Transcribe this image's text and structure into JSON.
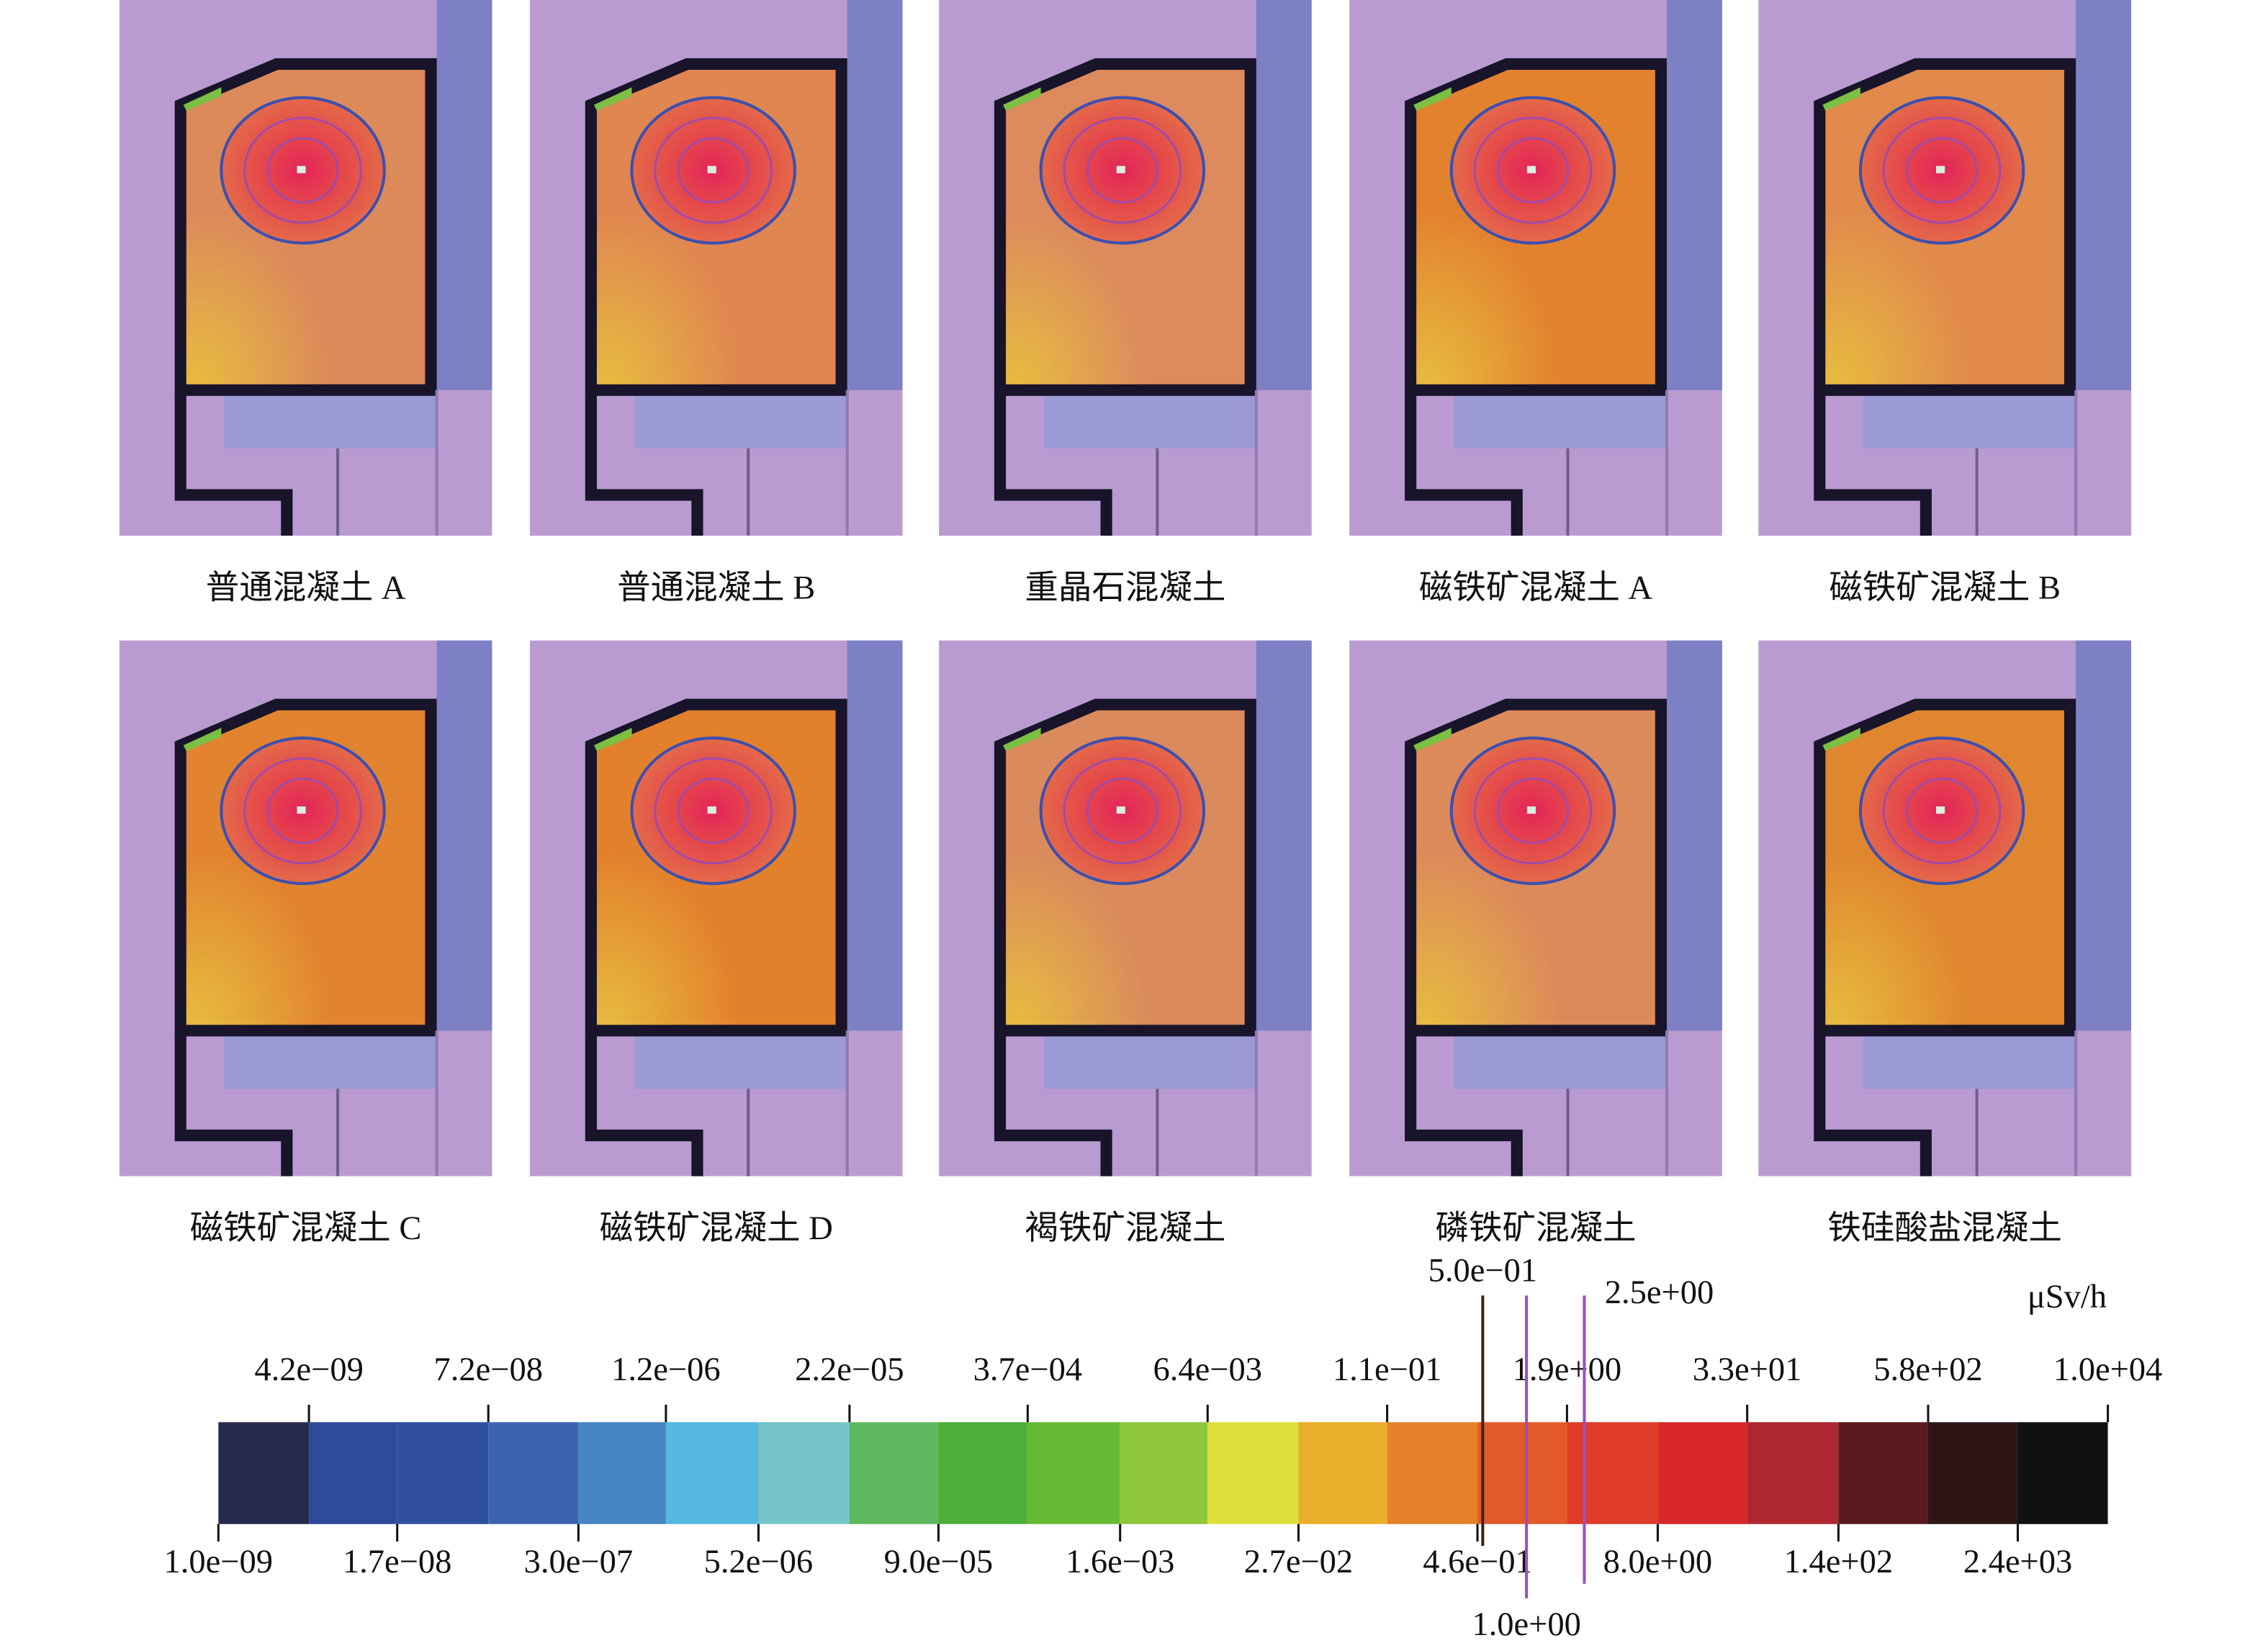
{
  "panels": [
    {
      "label": "普通混凝土 A"
    },
    {
      "label": "普通混凝土 B"
    },
    {
      "label": "重晶石混凝土"
    },
    {
      "label": "磁铁矿混凝土 A"
    },
    {
      "label": "磁铁矿混凝土 B"
    },
    {
      "label": "磁铁矿混凝土 C"
    },
    {
      "label": "磁铁矿混凝土 D"
    },
    {
      "label": "褐铁矿混凝土"
    },
    {
      "label": "磷铁矿混凝土"
    },
    {
      "label": "铁硅酸盐混凝土"
    }
  ],
  "colorbar": {
    "type": "colorbar",
    "unit": "μSv/h",
    "log_scale": true,
    "xlim": [
      1e-09,
      10000
    ],
    "ticks": [
      {
        "value": 1e-09,
        "label": "1.0e−09",
        "side": "bottom"
      },
      {
        "value": 4.2e-09,
        "label": "4.2e−09",
        "side": "top"
      },
      {
        "value": 1.7e-08,
        "label": "1.7e−08",
        "side": "bottom"
      },
      {
        "value": 7.2e-08,
        "label": "7.2e−08",
        "side": "top"
      },
      {
        "value": 3e-07,
        "label": "3.0e−07",
        "side": "bottom"
      },
      {
        "value": 1.2e-06,
        "label": "1.2e−06",
        "side": "top"
      },
      {
        "value": 5.2e-06,
        "label": "5.2e−06",
        "side": "bottom"
      },
      {
        "value": 2.2e-05,
        "label": "2.2e−05",
        "side": "top"
      },
      {
        "value": 9e-05,
        "label": "9.0e−05",
        "side": "bottom"
      },
      {
        "value": 0.00037,
        "label": "3.7e−04",
        "side": "top"
      },
      {
        "value": 0.0016,
        "label": "1.6e−03",
        "side": "bottom"
      },
      {
        "value": 0.0064,
        "label": "6.4e−03",
        "side": "top"
      },
      {
        "value": 0.027,
        "label": "2.7e−02",
        "side": "bottom"
      },
      {
        "value": 0.11,
        "label": "1.1e−01",
        "side": "top"
      },
      {
        "value": 0.46,
        "label": "4.6e−01",
        "side": "bottom"
      },
      {
        "value": 1.9,
        "label": "1.9e+00",
        "side": "top"
      },
      {
        "value": 8.0,
        "label": "8.0e+00",
        "side": "bottom"
      },
      {
        "value": 33,
        "label": "3.3e+01",
        "side": "top"
      },
      {
        "value": 140,
        "label": "1.4e+02",
        "side": "bottom"
      },
      {
        "value": 580,
        "label": "5.8e+02",
        "side": "top"
      },
      {
        "value": 2400,
        "label": "2.4e+03",
        "side": "bottom"
      },
      {
        "value": 10000,
        "label": "1.0e+04",
        "side": "top"
      }
    ],
    "colors": [
      "#262a4d",
      "#2e4a9a",
      "#30509f",
      "#3d63af",
      "#4785c3",
      "#54b8e0",
      "#74c4c8",
      "#5db85f",
      "#4caf3a",
      "#66b933",
      "#8dc63b",
      "#dde03a",
      "#e8af2b",
      "#e6802a",
      "#e25a2a",
      "#de3b2a",
      "#d8272a",
      "#ad2730",
      "#5a1a1f",
      "#2e1616",
      "#111111"
    ],
    "markers": [
      {
        "value": 0.5,
        "label": "5.0e−01",
        "color": "#3a2414"
      },
      {
        "value": 1.0,
        "label": "1.0e+00",
        "color": "#9a4fc0"
      },
      {
        "value": 2.5,
        "label": "2.5e+00",
        "color": "#9a4fc0"
      }
    ]
  }
}
